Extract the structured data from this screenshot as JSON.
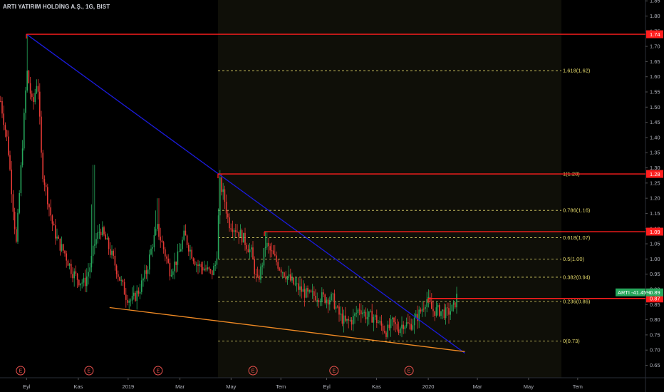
{
  "symbol": {
    "title": "ARTI YATIRIM HOLDİNG A.Ş., 1G, BIST"
  },
  "chart_data": {
    "type": "candlestick",
    "y_ticks": [
      0.65,
      0.7,
      0.75,
      0.8,
      0.85,
      0.9,
      0.95,
      1.0,
      1.05,
      1.1,
      1.15,
      1.2,
      1.25,
      1.3,
      1.35,
      1.4,
      1.45,
      1.5,
      1.55,
      1.6,
      1.65,
      1.7,
      1.75,
      1.8,
      1.85
    ],
    "ylim": [
      0.635,
      1.875
    ],
    "x_labels": [
      {
        "label": "Eyl",
        "pos": 0.04
      },
      {
        "label": "Kas",
        "pos": 0.118
      },
      {
        "label": "2019",
        "pos": 0.193
      },
      {
        "label": "Mar",
        "pos": 0.271
      },
      {
        "label": "May",
        "pos": 0.348
      },
      {
        "label": "Tem",
        "pos": 0.423
      },
      {
        "label": "Eyl",
        "pos": 0.492
      },
      {
        "label": "Kas",
        "pos": 0.567
      },
      {
        "label": "2020",
        "pos": 0.645
      },
      {
        "label": "Mar",
        "pos": 0.719
      },
      {
        "label": "May",
        "pos": 0.796
      },
      {
        "label": "Tem",
        "pos": 0.87
      }
    ],
    "horizontal_levels": [
      {
        "price": 1.74,
        "label": "1.74",
        "color": "#ff1e1e"
      },
      {
        "price": 1.28,
        "label": "1.28",
        "color": "#ff1e1e"
      },
      {
        "price": 1.09,
        "label": "1.09",
        "color": "#ff1e1e"
      },
      {
        "price": 0.87,
        "label": "0.87",
        "color": "#ff1e1e"
      }
    ],
    "fibonacci": [
      {
        "label": "1.618(1.62)",
        "price": 1.62
      },
      {
        "label": "1(1.28)",
        "price": 1.28
      },
      {
        "label": "0.786(1.16)",
        "price": 1.16
      },
      {
        "label": "0.618(1.07)",
        "price": 1.07
      },
      {
        "label": "0.5(1.00)",
        "price": 1.0
      },
      {
        "label": "0.382(0.94)",
        "price": 0.94
      },
      {
        "label": "0.236(0.86)",
        "price": 0.86
      },
      {
        "label": "0(0.73)",
        "price": 0.73
      }
    ],
    "current_price": {
      "price": 0.89,
      "label": "0.89",
      "series_label": "ARTI -41.45%",
      "color": "#26a65b"
    },
    "trendlines": [
      {
        "name": "downtrend-line",
        "color": "#1b1bdc",
        "from": {
          "x": 0.04,
          "price": 1.74
        },
        "to": {
          "x": 0.7,
          "price": 0.69
        }
      },
      {
        "name": "support-line",
        "color": "#f08a24",
        "from": {
          "x": 0.165,
          "price": 0.84
        },
        "to": {
          "x": 0.7,
          "price": 0.695
        }
      }
    ],
    "earnings_markers": [
      {
        "label": "E",
        "pos": 0.031
      },
      {
        "label": "E",
        "pos": 0.134
      },
      {
        "label": "E",
        "pos": 0.238
      },
      {
        "label": "E",
        "pos": 0.381
      },
      {
        "label": "E",
        "pos": 0.503
      },
      {
        "label": "E",
        "pos": 0.616
      }
    ],
    "colors": {
      "background": "#000000",
      "highlight_zone": "#0f0f08",
      "bull": "#26a65b",
      "bear": "#e53935",
      "fib": "#e2d76a",
      "axis_text": "#b2b5be"
    }
  }
}
